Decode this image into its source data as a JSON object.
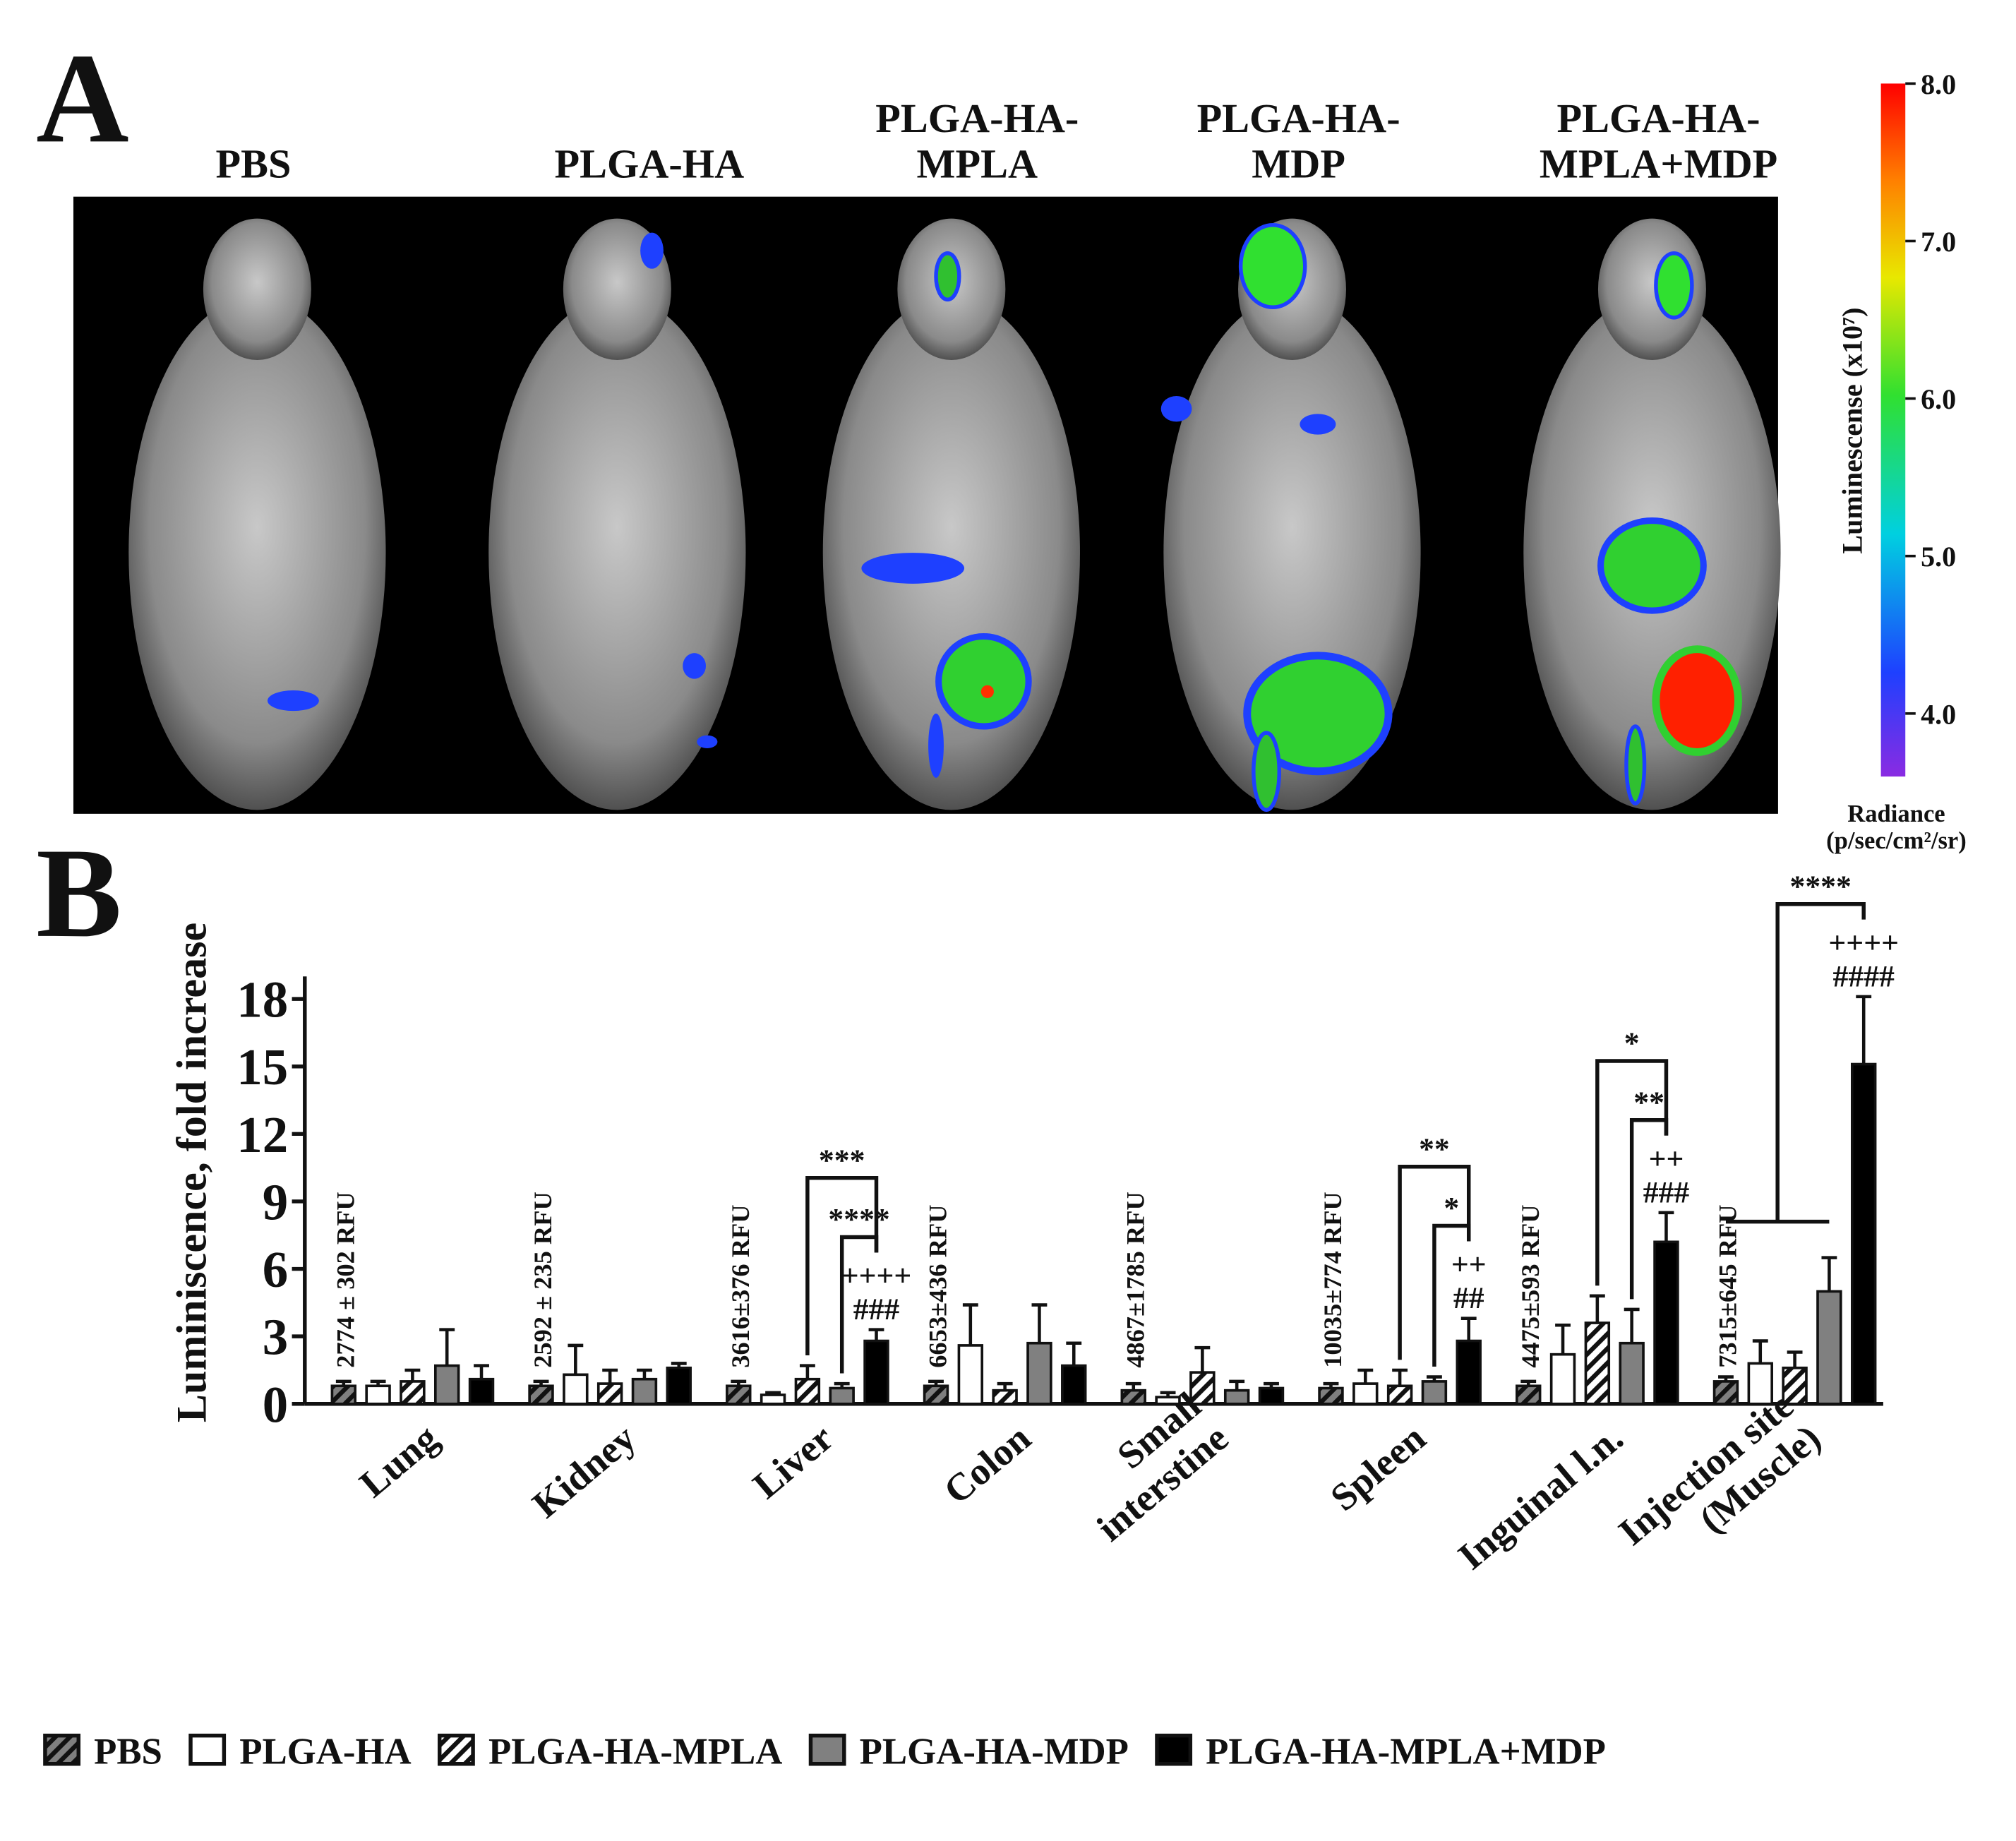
{
  "chart_data": [
    {
      "type": "image",
      "panel_label": "A",
      "titles": [
        "PBS",
        "PLGA-HA",
        "PLGA-HA-\nMPLA",
        "PLGA-HA-\nMDP",
        "PLGA-HA-\nMPLA+MDP"
      ],
      "colorbar": {
        "label": "Luminescense (x10⁷)",
        "unit": "Radiance\n(p/sec/cm²/sr)",
        "lim": [
          3.6,
          8.0
        ],
        "ticks": [
          {
            "value": 4,
            "label": "4.0"
          },
          {
            "value": 5,
            "label": "5.0"
          },
          {
            "value": 6,
            "label": "6.0"
          },
          {
            "value": 7,
            "label": "7.0"
          },
          {
            "value": 8,
            "label": "8.0"
          }
        ]
      }
    },
    {
      "type": "bar",
      "panel_label": "B",
      "y_label": "Luminiscence, fold increase",
      "categories": [
        "Lung",
        "Kidney",
        "Liver",
        "Colon",
        "Small\ninterstine",
        "Spleen",
        "Inguinal l.n.",
        "Injection site\n(Muscle)"
      ],
      "category_notes": [
        "2774 ± 302 RFU",
        "2592 ± 235 RFU",
        "3616±376 RFU",
        "6653±436 RFU",
        "4867±1785 RFU",
        "10035±774 RFU",
        "4475±593 RFU",
        "7315±645 RFU"
      ],
      "series": [
        {
          "name": "PBS",
          "color": "#7f7f7f",
          "pattern": "hatch",
          "values": [
            0.8,
            0.8,
            0.8,
            0.8,
            0.6,
            0.7,
            0.8,
            1.0
          ],
          "errors": [
            0.2,
            0.2,
            0.2,
            0.2,
            0.3,
            0.2,
            0.2,
            0.2
          ]
        },
        {
          "name": "PLGA-HA",
          "color": "#ffffff",
          "values": [
            0.8,
            1.3,
            0.4,
            2.6,
            0.3,
            0.9,
            2.2,
            1.8
          ],
          "errors": [
            0.2,
            1.3,
            0.1,
            1.8,
            0.2,
            0.6,
            1.3,
            1.0
          ]
        },
        {
          "name": "PLGA-HA-MPLA",
          "color": "#ffffff",
          "pattern": "hatch",
          "values": [
            1.0,
            0.9,
            1.1,
            0.6,
            1.4,
            0.8,
            3.6,
            1.6
          ],
          "errors": [
            0.5,
            0.6,
            0.6,
            0.3,
            1.1,
            0.7,
            1.2,
            0.7
          ]
        },
        {
          "name": "PLGA-HA-MDP",
          "color": "#808080",
          "values": [
            1.7,
            1.1,
            0.7,
            2.7,
            0.6,
            1.0,
            2.7,
            5.0
          ],
          "errors": [
            1.6,
            0.4,
            0.2,
            1.7,
            0.4,
            0.2,
            1.5,
            1.5
          ]
        },
        {
          "name": "PLGA-HA-MPLA+MDP",
          "color": "#000000",
          "values": [
            1.1,
            1.6,
            2.8,
            1.7,
            0.7,
            2.8,
            7.2,
            15.1
          ],
          "errors": [
            0.6,
            0.2,
            0.5,
            1.0,
            0.2,
            1.0,
            1.3,
            3.0
          ]
        }
      ],
      "ylim": [
        0,
        19
      ],
      "yticks": [
        0,
        3,
        6,
        9,
        12,
        15,
        18
      ],
      "annotations": [
        {
          "category": "Liver",
          "marks": [
            "++++",
            "###"
          ],
          "brackets": [
            {
              "from": [
                "PLGA-HA-MDP"
              ],
              "label": "****"
            },
            {
              "from": [
                "PLGA-HA-MPLA"
              ],
              "label": "***"
            }
          ]
        },
        {
          "category": "Spleen",
          "marks": [
            "++",
            "##"
          ],
          "brackets": [
            {
              "from": [
                "PLGA-HA-MDP"
              ],
              "label": "*"
            },
            {
              "from": [
                "PLGA-HA-MPLA"
              ],
              "label": "**"
            }
          ]
        },
        {
          "category": "Inguinal l.n.",
          "marks": [
            "++",
            "###"
          ],
          "brackets": [
            {
              "from": [
                "PLGA-HA-MDP"
              ],
              "label": "**"
            },
            {
              "from": [
                "PLGA-HA-MPLA"
              ],
              "label": "*"
            }
          ]
        },
        {
          "category": "Injection site\n(Muscle)",
          "marks": [
            "++++",
            "####"
          ],
          "brackets": [
            {
              "from": [
                "PBS",
                "PLGA-HA",
                "PLGA-HA-MPLA",
                "PLGA-HA-MDP"
              ],
              "label": "****"
            }
          ]
        }
      ],
      "legend": "bottom"
    }
  ]
}
